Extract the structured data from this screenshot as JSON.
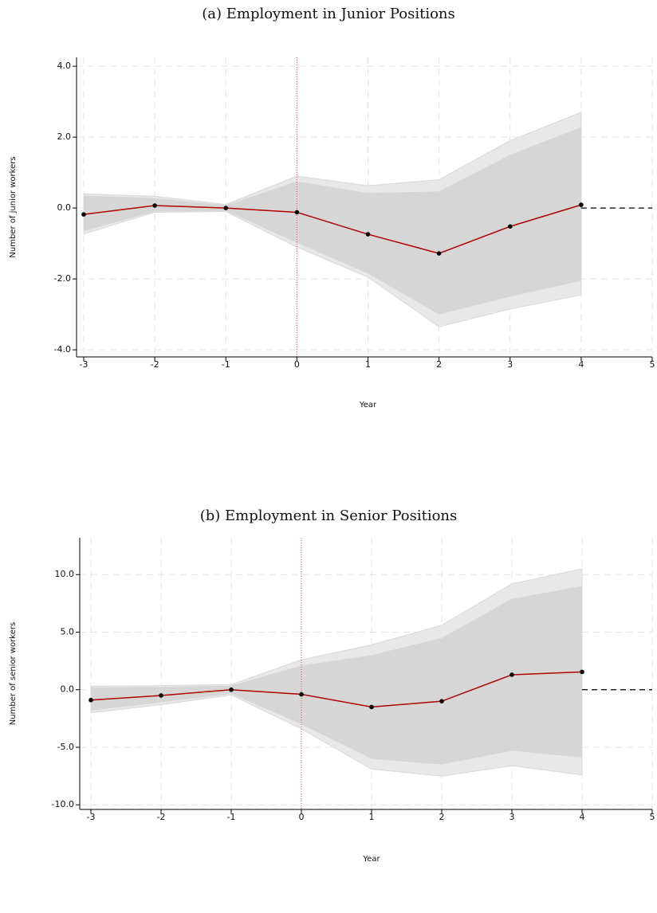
{
  "chart_data": [
    {
      "type": "line",
      "title": "(a)  Employment in Junior Positions",
      "ylabel": "Number of junior workers",
      "xlabel": "Year",
      "x": [
        -3,
        -2,
        -1,
        0,
        1,
        2,
        3,
        4
      ],
      "values": [
        -0.18,
        0.07,
        0,
        -0.12,
        -0.74,
        -1.28,
        -0.52,
        0.09
      ],
      "band_outer": {
        "upper": [
          0.4,
          0.33,
          0.1,
          0.9,
          0.63,
          0.8,
          1.9,
          2.7
        ],
        "lower": [
          -0.73,
          -0.12,
          -0.1,
          -1.1,
          -1.95,
          -3.35,
          -2.85,
          -2.45
        ]
      },
      "band_inner": {
        "upper": [
          0.35,
          0.28,
          0.08,
          0.75,
          0.42,
          0.47,
          1.5,
          2.28
        ],
        "lower": [
          -0.65,
          -0.1,
          -0.08,
          -0.98,
          -1.85,
          -3.0,
          -2.5,
          -2.05
        ]
      },
      "line_color": "#b00000",
      "outer_color": "#e8e8e8",
      "inner_color": "#d6d6d6",
      "xlim": [
        -3,
        5
      ],
      "xticks": [
        -3,
        -2,
        -1,
        0,
        1,
        2,
        3,
        4,
        5
      ],
      "ylim": [
        -4.2,
        4.25
      ],
      "yticks": [
        {
          "value": -4,
          "label": "-4.0"
        },
        {
          "value": -2,
          "label": "-2.0"
        },
        {
          "value": 0,
          "label": "0.0"
        },
        {
          "value": 2,
          "label": "2.0"
        },
        {
          "value": 4,
          "label": "4.0"
        }
      ],
      "vline": 0,
      "hline": 0,
      "grid": true
    },
    {
      "type": "line",
      "title": "(b)  Employment in Senior Positions",
      "ylabel": "Number of senior workers",
      "xlabel": "Year",
      "x": [
        -3,
        -2,
        -1,
        0,
        1,
        2,
        3,
        4
      ],
      "values": [
        -0.9,
        -0.5,
        0,
        -0.4,
        -1.5,
        -1.0,
        1.3,
        1.55
      ],
      "band_outer": {
        "upper": [
          0.3,
          0.35,
          0.45,
          2.6,
          3.9,
          5.6,
          9.2,
          10.5
        ],
        "lower": [
          -2.0,
          -1.3,
          -0.45,
          -3.4,
          -6.9,
          -7.5,
          -6.6,
          -7.4
        ]
      },
      "band_inner": {
        "upper": [
          0.2,
          0.25,
          0.35,
          2.1,
          3.0,
          4.5,
          7.9,
          9.0
        ],
        "lower": [
          -1.8,
          -1.1,
          -0.35,
          -3.0,
          -6.0,
          -6.5,
          -5.3,
          -5.9
        ]
      },
      "line_color": "#b00000",
      "outer_color": "#e8e8e8",
      "inner_color": "#d6d6d6",
      "xlim": [
        -3,
        5
      ],
      "xticks": [
        -3,
        -2,
        -1,
        0,
        1,
        2,
        3,
        4,
        5
      ],
      "ylim": [
        -10.4,
        13.2
      ],
      "yticks": [
        {
          "value": -10,
          "label": "-10.0"
        },
        {
          "value": -5,
          "label": "-5.0"
        },
        {
          "value": 0,
          "label": "0.0"
        },
        {
          "value": 5,
          "label": "5.0"
        },
        {
          "value": 10,
          "label": "10.0"
        }
      ],
      "vline": 0,
      "hline": 0,
      "grid": true
    }
  ]
}
